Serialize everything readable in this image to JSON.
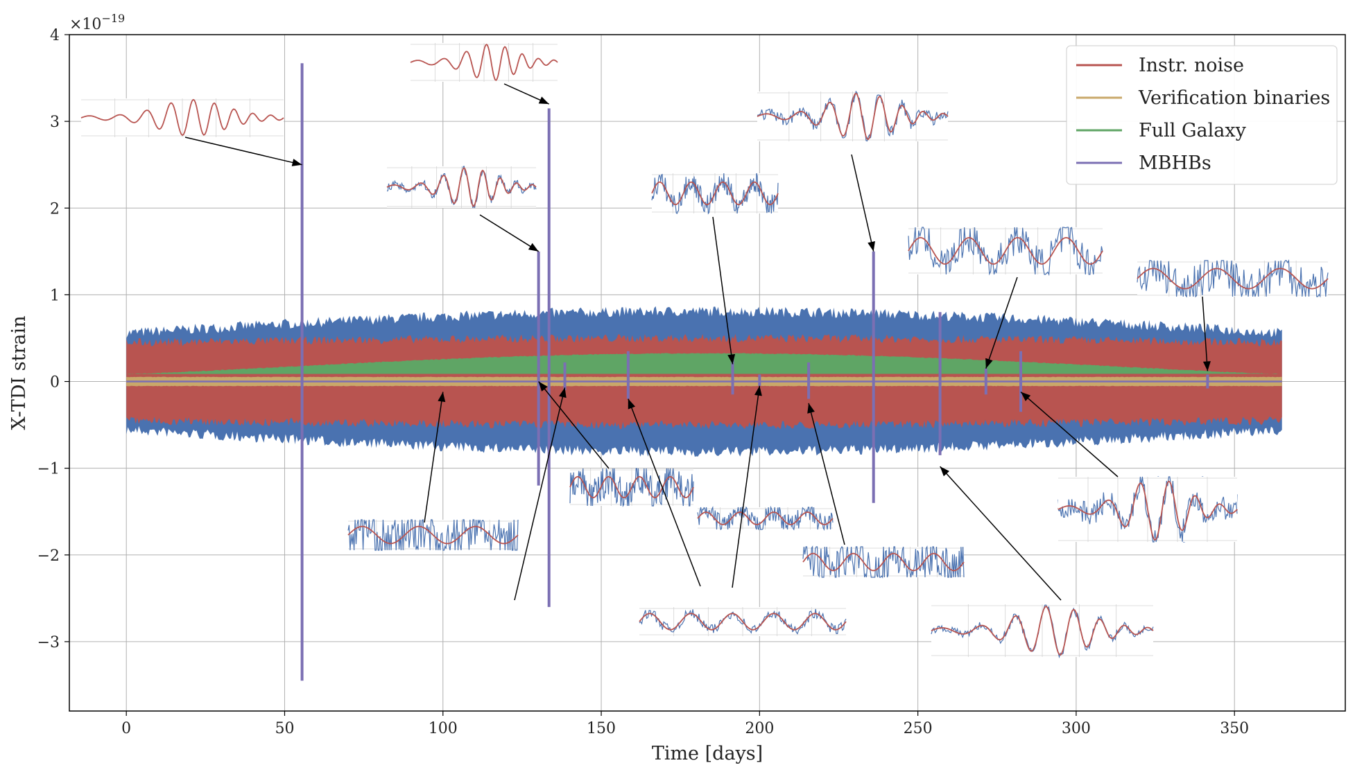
{
  "chart_data": {
    "type": "line",
    "title": "",
    "xlabel": "Time [days]",
    "ylabel": "X-TDI strain",
    "y_scale_label": "×10",
    "y_scale_exponent": "−19",
    "xlim": [
      -18,
      385
    ],
    "ylim": [
      -3.8,
      4.0
    ],
    "x_ticks": [
      0,
      50,
      100,
      150,
      200,
      250,
      300,
      350
    ],
    "y_ticks": [
      -3,
      -2,
      -1,
      0,
      1,
      2,
      3,
      4
    ],
    "x_tick_labels": [
      "0",
      "50",
      "100",
      "150",
      "200",
      "250",
      "300",
      "350"
    ],
    "y_tick_labels": [
      "−3",
      "−2",
      "−1",
      "0",
      "1",
      "2",
      "3",
      "4"
    ],
    "grid": true,
    "legend_position": "top-right",
    "colors": {
      "instr": "#b85450",
      "verif": "#c9a86a",
      "galaxy": "#5fa565",
      "mbhb": "#7b6fb3",
      "total": "#4a72b0"
    },
    "series": [
      {
        "name": "Instr. noise",
        "key": "instr",
        "envelope_min": 0.4,
        "envelope_max": 0.45
      },
      {
        "name": "Verification binaries",
        "key": "verif",
        "envelope_min": 0.05,
        "envelope_max": 0.05
      },
      {
        "name": "Full Galaxy",
        "key": "galaxy",
        "envelope_min": 0.08,
        "envelope_max": 0.32
      },
      {
        "name": "MBHBs",
        "key": "mbhb"
      }
    ],
    "total_envelope": {
      "min": 0.5,
      "max": 0.75
    },
    "mbhb_events": [
      {
        "t": 55.5,
        "ymin": -3.45,
        "ymax": 3.67
      },
      {
        "t": 130.2,
        "ymin": -1.2,
        "ymax": 1.5
      },
      {
        "t": 133.5,
        "ymin": -2.6,
        "ymax": 3.15
      },
      {
        "t": 138.5,
        "ymin": -0.1,
        "ymax": 0.22
      },
      {
        "t": 158.5,
        "ymin": -0.2,
        "ymax": 0.35
      },
      {
        "t": 191.5,
        "ymin": -0.15,
        "ymax": 0.25
      },
      {
        "t": 200.0,
        "ymin": -0.05,
        "ymax": 0.08
      },
      {
        "t": 215.5,
        "ymin": -0.2,
        "ymax": 0.22
      },
      {
        "t": 236.0,
        "ymin": -1.4,
        "ymax": 1.5
      },
      {
        "t": 257.0,
        "ymin": -0.85,
        "ymax": 0.8
      },
      {
        "t": 271.5,
        "ymin": -0.15,
        "ymax": 0.15
      },
      {
        "t": 282.5,
        "ymin": -0.35,
        "ymax": 0.35
      },
      {
        "t": 341.5,
        "ymin": -0.08,
        "ymax": 0.08
      }
    ],
    "insets": [
      {
        "event_t": 55.5,
        "event_y": 2.5,
        "noise": 0.0,
        "cycles": 6,
        "chirp": true
      },
      {
        "event_t": 133.5,
        "event_y": 3.2,
        "noise": 0.0,
        "cycles": 5,
        "chirp": true
      },
      {
        "event_t": 130.2,
        "event_y": 1.5,
        "noise": 0.2,
        "cycles": 5,
        "chirp": true
      },
      {
        "event_t": 236.0,
        "event_y": 1.5,
        "noise": 0.25,
        "cycles": 5,
        "chirp": true
      },
      {
        "event_t": 191.5,
        "event_y": 0.2,
        "noise": 0.55,
        "cycles": 4,
        "chirp": false
      },
      {
        "event_t": 271.5,
        "event_y": 0.15,
        "noise": 0.7,
        "cycles": 4,
        "chirp": false
      },
      {
        "event_t": 341.5,
        "event_y": 0.12,
        "noise": 1.2,
        "cycles": 3,
        "chirp": false
      },
      {
        "event_t": 100.0,
        "event_y": -0.12,
        "noise": 1.6,
        "cycles": 3,
        "chirp": false
      },
      {
        "event_t": 130.2,
        "event_y": 0.0,
        "noise": 1.0,
        "cycles": 4,
        "chirp": false
      },
      {
        "event_t": 138.5,
        "event_y": -0.07,
        "noise": 0.9,
        "cycles": 4,
        "chirp": false
      },
      {
        "event_t": 158.5,
        "event_y": -0.2,
        "noise": 0.35,
        "cycles": 5,
        "chirp": false
      },
      {
        "event_t": 200.0,
        "event_y": -0.05,
        "noise": 1.5,
        "cycles": 4,
        "chirp": false
      },
      {
        "event_t": 215.5,
        "event_y": -0.25,
        "noise": 0.6,
        "cycles": 4,
        "chirp": false
      },
      {
        "event_t": 282.5,
        "event_y": -0.12,
        "noise": 0.35,
        "cycles": 4,
        "chirp": true
      },
      {
        "event_t": 257.0,
        "event_y": -0.98,
        "noise": 0.15,
        "cycles": 5,
        "chirp": true
      }
    ]
  }
}
